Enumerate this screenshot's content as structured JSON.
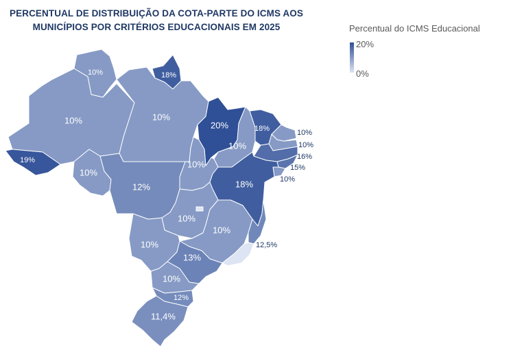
{
  "title_line1": "PERCENTUAL DE DISTRIBUIÇÃO DA COTA-PARTE DO ICMS AOS",
  "title_line2": "MUNICÍPIOS POR CRITÉRIOS EDUCACIONAIS EM 2025",
  "legend": {
    "title": "Percentual do ICMS Educacional",
    "max_label": "20%",
    "min_label": "0%",
    "max_value": 20,
    "min_value": 0,
    "color_high": "#2f4f96",
    "color_low": "#dde4f3"
  },
  "states": [
    {
      "id": "RR",
      "value": 10,
      "label": "10%"
    },
    {
      "id": "AP",
      "value": 18,
      "label": "18%"
    },
    {
      "id": "AM",
      "value": 10,
      "label": "10%"
    },
    {
      "id": "PA",
      "value": 10,
      "label": "10%"
    },
    {
      "id": "MA",
      "value": 20,
      "label": "20%"
    },
    {
      "id": "CE",
      "value": 18,
      "label": "18%"
    },
    {
      "id": "RN",
      "value": 10,
      "label": "10%"
    },
    {
      "id": "PB",
      "value": 10,
      "label": "10%"
    },
    {
      "id": "PE",
      "value": 16,
      "label": "16%"
    },
    {
      "id": "AL",
      "value": 15,
      "label": "15%"
    },
    {
      "id": "SE",
      "value": 10,
      "label": "10%"
    },
    {
      "id": "PI",
      "value": 10,
      "label": "10%"
    },
    {
      "id": "AC",
      "value": 19,
      "label": "19%"
    },
    {
      "id": "RO",
      "value": 10,
      "label": "10%"
    },
    {
      "id": "TO",
      "value": 10,
      "label": "10%"
    },
    {
      "id": "BA",
      "value": 18,
      "label": "18%"
    },
    {
      "id": "MT",
      "value": 12,
      "label": "12%"
    },
    {
      "id": "GO",
      "value": 10,
      "label": "10%"
    },
    {
      "id": "DF",
      "value": 0,
      "label": ""
    },
    {
      "id": "MG",
      "value": 10,
      "label": "10%"
    },
    {
      "id": "ES",
      "value": 12.5,
      "label": "12,5%"
    },
    {
      "id": "RJ",
      "value": 0,
      "label": ""
    },
    {
      "id": "MS",
      "value": 10,
      "label": "10%"
    },
    {
      "id": "SP",
      "value": 13,
      "label": "13%"
    },
    {
      "id": "PR",
      "value": 10,
      "label": "10%"
    },
    {
      "id": "SC",
      "value": 12,
      "label": "12%"
    },
    {
      "id": "RS",
      "value": 11.4,
      "label": "11,4%"
    }
  ]
}
